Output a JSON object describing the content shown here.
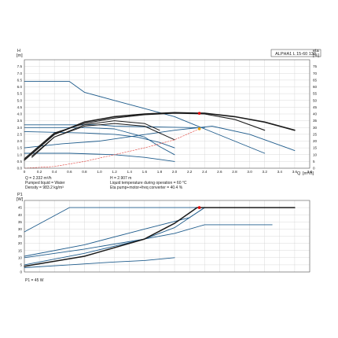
{
  "chart_data": [
    {
      "type": "line",
      "title": "ALPHA1 L 15-60 130",
      "ylabel": "H",
      "yunit": "[m]",
      "y2label": "eta",
      "y2unit": "[%]",
      "xlabel": "Q",
      "xunit": "[m³/h]",
      "xlim": [
        0,
        3.8
      ],
      "ylim": [
        0,
        8.0
      ],
      "y2lim": [
        0,
        80
      ],
      "xticks": [
        "0",
        "0.2",
        "0.4",
        "0.6",
        "0.8",
        "1.0",
        "1.2",
        "1.4",
        "1.6",
        "1.8",
        "2.0",
        "2.2",
        "2.4",
        "2.6",
        "2.8",
        "3.0",
        "3.2",
        "3.4",
        "3.6",
        "3.8"
      ],
      "xtick_values": [
        0,
        0.2,
        0.4,
        0.6,
        0.8,
        1.0,
        1.2,
        1.4,
        1.6,
        1.8,
        2.0,
        2.2,
        2.4,
        2.6,
        2.8,
        3.0,
        3.2,
        3.4,
        3.6,
        3.8
      ],
      "yticks": [
        "0.0",
        "0.5",
        "1.0",
        "1.5",
        "2.0",
        "2.5",
        "3.0",
        "3.5",
        "4.0",
        "4.5",
        "5.0",
        "5.5",
        "6.0",
        "6.5",
        "7.0",
        "7.5"
      ],
      "ytick_values": [
        0,
        0.5,
        1.0,
        1.5,
        2.0,
        2.5,
        3.0,
        3.5,
        4.0,
        4.5,
        5.0,
        5.5,
        6.0,
        6.5,
        7.0,
        7.5
      ],
      "y2ticks": [
        "0",
        "5",
        "10",
        "15",
        "20",
        "25",
        "30",
        "35",
        "40",
        "45",
        "50",
        "55",
        "60",
        "65",
        "70",
        "75"
      ],
      "y2tick_values": [
        0,
        5,
        10,
        15,
        20,
        25,
        30,
        35,
        40,
        45,
        50,
        55,
        60,
        65,
        70,
        75
      ],
      "grid": true,
      "series": [
        {
          "color": "#1f5c8c",
          "width": 0.9,
          "x": [
            0,
            0.6,
            0.8,
            1.2,
            1.6,
            2.0,
            2.4,
            2.8,
            3.2
          ],
          "y": [
            6.4,
            6.4,
            5.6,
            5.0,
            4.4,
            3.8,
            2.9,
            2.0,
            1.1
          ]
        },
        {
          "color": "#1f5c8c",
          "width": 0.9,
          "x": [
            0,
            0.5,
            1.0,
            1.5,
            2.0,
            2.5,
            3.0,
            3.5,
            3.6
          ],
          "y": [
            1.5,
            1.8,
            2.0,
            2.4,
            2.8,
            3.1,
            2.5,
            1.5,
            1.3
          ]
        },
        {
          "color": "#1f5c8c",
          "width": 0.9,
          "x": [
            0,
            1.0,
            1.2,
            2.2,
            2.4
          ],
          "y": [
            3.2,
            3.2,
            3.1,
            3.0,
            3.0
          ]
        },
        {
          "color": "#1f5c8c",
          "width": 0.9,
          "x": [
            0,
            0.8,
            1.2,
            1.6,
            1.8,
            2.0
          ],
          "y": [
            3.0,
            3.0,
            2.9,
            2.3,
            1.6,
            1.0
          ]
        },
        {
          "color": "#1f5c8c",
          "width": 0.9,
          "x": [
            0,
            0.8,
            1.2,
            1.5,
            1.8,
            2.0
          ],
          "y": [
            2.7,
            2.6,
            2.5,
            2.3,
            1.9,
            1.5
          ]
        },
        {
          "color": "#1f5c8c",
          "width": 0.9,
          "x": [
            0,
            0.6,
            1.2,
            1.6,
            2.0
          ],
          "y": [
            1.1,
            1.1,
            1.0,
            0.8,
            0.5
          ]
        },
        {
          "color": "#1a1a1a",
          "width": 1.6,
          "x": [
            0,
            0.4,
            0.8,
            1.2,
            1.6,
            2.0,
            2.4,
            2.8,
            3.2,
            3.6
          ],
          "y": [
            0.6,
            2.5,
            3.4,
            3.8,
            4.0,
            4.1,
            4.05,
            3.8,
            3.4,
            2.8
          ]
        },
        {
          "color": "#1a1a1a",
          "width": 1.1,
          "x": [
            0,
            0.4,
            0.8,
            1.2,
            1.6,
            2.0,
            2.4,
            2.8,
            3.2
          ],
          "y": [
            0.7,
            2.6,
            3.3,
            3.7,
            3.95,
            4.05,
            4.0,
            3.6,
            2.8
          ]
        },
        {
          "color": "#1a1a1a",
          "width": 1.0,
          "x": [
            0.1,
            0.4,
            0.8,
            1.2,
            1.6,
            2.0
          ],
          "y": [
            0.8,
            2.3,
            3.1,
            3.3,
            3.1,
            2.1
          ]
        },
        {
          "color": "#1a1a1a",
          "width": 1.0,
          "x": [
            0.1,
            0.4,
            0.8,
            1.2,
            1.6,
            1.8
          ],
          "y": [
            0.9,
            2.3,
            3.2,
            3.5,
            3.3,
            2.8
          ]
        },
        {
          "color": "#e0403a",
          "width": 0.6,
          "dash": "2 1.5",
          "x": [
            0,
            0.4,
            0.8,
            1.2,
            1.6,
            2.0,
            2.33
          ],
          "y": [
            0,
            0.13,
            0.5,
            1.0,
            1.5,
            2.1,
            2.907
          ]
        }
      ],
      "points": [
        {
          "x": 2.33,
          "y": 4.05,
          "color": "#e00000"
        },
        {
          "x": 2.33,
          "y": 2.907,
          "color": "#f0a000"
        }
      ],
      "annotations": [
        "Q = 2.332 m³/h",
        "H = 2.907 m",
        "Pumped liquid = Water",
        "Liquid temperature during operation = 60 °C",
        "Density = 983.2 kg/m³",
        "Eta pump+motor+freq converter = 40.4 %"
      ]
    },
    {
      "type": "line",
      "ylabel": "P1",
      "yunit": "[W]",
      "xlim": [
        0,
        3.8
      ],
      "ylim": [
        0,
        50
      ],
      "yticks": [
        "0",
        "5",
        "10",
        "15",
        "20",
        "25",
        "30",
        "35",
        "40",
        "45"
      ],
      "ytick_values": [
        0,
        5,
        10,
        15,
        20,
        25,
        30,
        35,
        40,
        45
      ],
      "grid": true,
      "series": [
        {
          "color": "#1f5c8c",
          "width": 0.9,
          "x": [
            0,
            0.6,
            3.6
          ],
          "y": [
            28,
            45,
            45
          ]
        },
        {
          "color": "#1f5c8c",
          "width": 0.9,
          "x": [
            0,
            0.8,
            1.6,
            2.0,
            2.4,
            2.8,
            3.3
          ],
          "y": [
            10,
            16,
            23,
            27,
            33,
            33,
            33
          ]
        },
        {
          "color": "#1f5c8c",
          "width": 0.9,
          "x": [
            0,
            0.8,
            1.6,
            2.2,
            2.4,
            3.6
          ],
          "y": [
            11,
            19,
            30,
            38,
            45,
            45
          ]
        },
        {
          "color": "#1f5c8c",
          "width": 0.9,
          "x": [
            0,
            0.8,
            1.6,
            2.0,
            2.4
          ],
          "y": [
            5,
            13,
            23,
            31,
            45
          ]
        },
        {
          "color": "#1f5c8c",
          "width": 0.9,
          "x": [
            0,
            0.6,
            1.2,
            1.6,
            2.0
          ],
          "y": [
            3,
            5,
            7,
            8,
            10
          ]
        },
        {
          "color": "#1a1a1a",
          "width": 1.5,
          "x": [
            0,
            0.8,
            1.6,
            2.0,
            2.3,
            3.6
          ],
          "y": [
            4,
            11,
            23,
            34,
            45,
            45
          ]
        }
      ],
      "points": [
        {
          "x": 2.33,
          "y": 45,
          "color": "#e00000"
        }
      ],
      "annotations": [
        "P1 = 45 W"
      ]
    }
  ]
}
